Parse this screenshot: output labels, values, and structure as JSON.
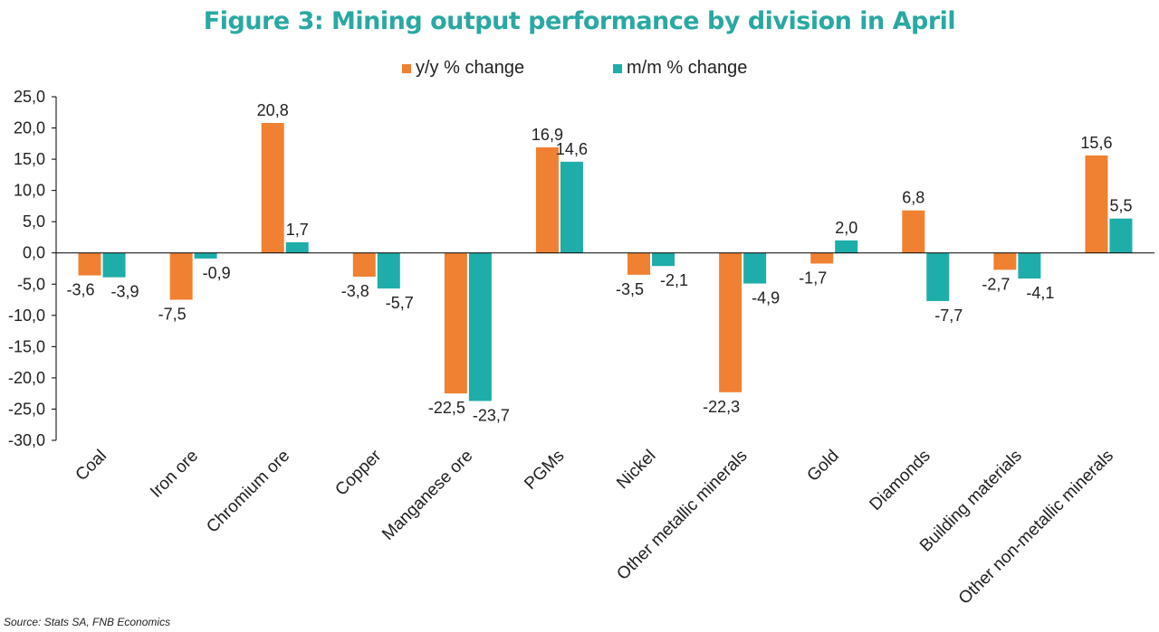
{
  "colors": {
    "title": "#2aa8a2",
    "yy": "#f08132",
    "mm": "#1fada9",
    "label_line": "#9a9a9a",
    "axis": "#000000"
  },
  "chart_data": {
    "type": "bar",
    "title": "Figure 3: Mining output performance by division in April",
    "xlabel": "",
    "ylabel": "",
    "ylim": [
      -30,
      25
    ],
    "yticks": [
      "25,0",
      "20,0",
      "15,0",
      "10,0",
      "5,0",
      "0,0",
      "-5,0",
      "-10,0",
      "-15,0",
      "-20,0",
      "-25,0",
      "-30,0"
    ],
    "grid": false,
    "legend_position": "top-center",
    "categories": [
      "Coal",
      "Iron ore",
      "Chromium ore",
      "Copper",
      "Manganese ore",
      "PGMs",
      "Nickel",
      "Other metallic minerals",
      "Gold",
      "Diamonds",
      "Building materials",
      "Other non-metallic minerals"
    ],
    "series": [
      {
        "name": "y/y % change",
        "color_key": "yy",
        "values": [
          -3.6,
          -7.5,
          20.8,
          -3.8,
          -22.5,
          16.9,
          -3.5,
          -22.3,
          -1.7,
          6.8,
          -2.7,
          15.6
        ],
        "labels": [
          "-3,6",
          "-7,5",
          "20,8",
          "-3,8",
          "-22,5",
          "16,9",
          "-3,5",
          "-22,3",
          "-1,7",
          "6,8",
          "-2,7",
          "15,6"
        ]
      },
      {
        "name": "m/m % change",
        "color_key": "mm",
        "values": [
          -3.9,
          -0.9,
          1.7,
          -5.7,
          -23.7,
          14.6,
          -2.1,
          -4.9,
          2.0,
          -7.7,
          -4.1,
          5.5
        ],
        "labels": [
          "-3,9",
          "-0,9",
          "1,7",
          "-5,7",
          "-23,7",
          "14,6",
          "-2,1",
          "-4,9",
          "2,0",
          "-7,7",
          "-4,1",
          "5,5"
        ]
      }
    ]
  },
  "legend": {
    "items": [
      "y/y % change",
      "m/m % change"
    ]
  },
  "source": "Source: Stats SA, FNB Economics"
}
